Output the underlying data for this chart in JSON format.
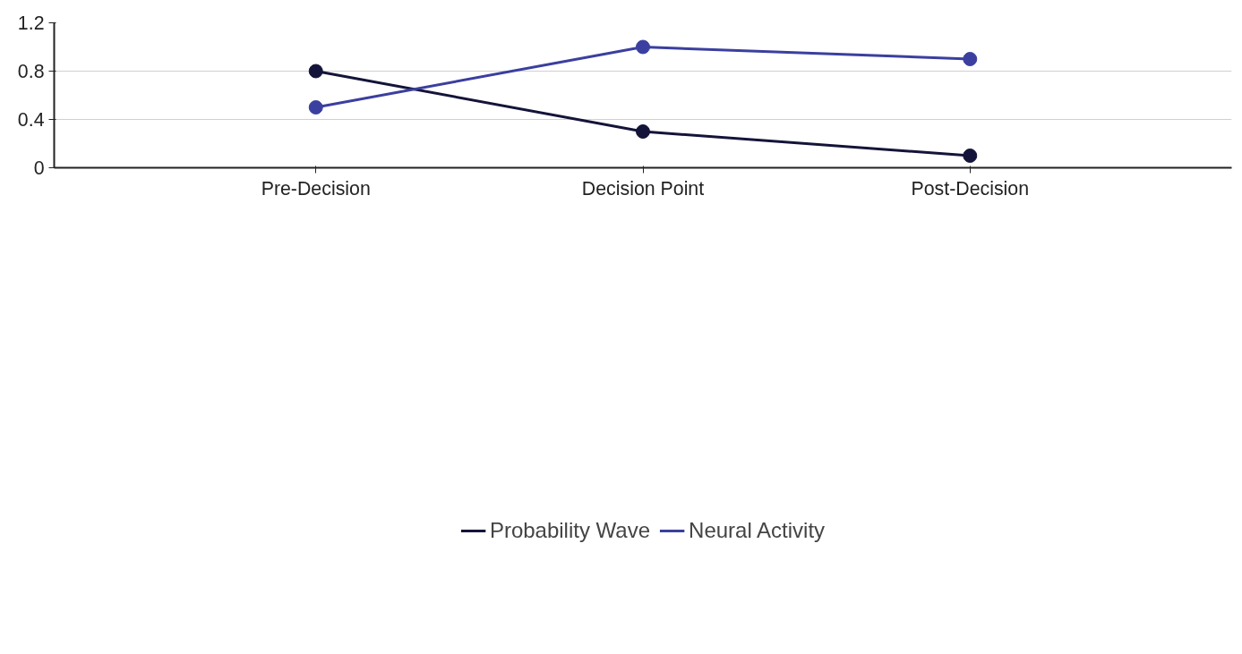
{
  "chart_data": {
    "type": "line",
    "categories": [
      "Pre-Decision",
      "Decision Point",
      "Post-Decision"
    ],
    "series": [
      {
        "name": "Probability Wave",
        "color": "#14143a",
        "values": [
          0.8,
          0.3,
          0.1
        ]
      },
      {
        "name": "Neural Activity",
        "color": "#3b3f9f",
        "values": [
          0.5,
          1.0,
          0.9
        ]
      }
    ],
    "ylim": [
      0,
      1.2
    ],
    "yticks": [
      0,
      0.4,
      0.8,
      1.2
    ],
    "grid": "y",
    "legend": "bottom",
    "marker": "circle",
    "line_style": "solid"
  }
}
